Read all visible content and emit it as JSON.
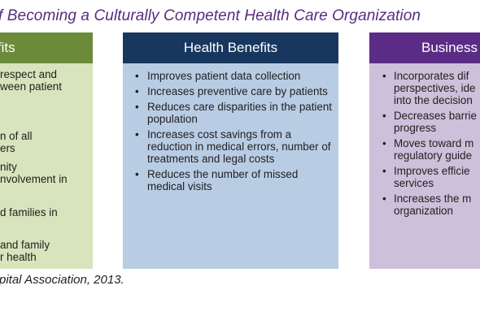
{
  "title": "f Becoming a Culturally Competent Health Care Organization",
  "source": "pital Association, 2013.",
  "bullet": "•",
  "columns": {
    "left": {
      "heading": "nefits",
      "lines": [
        "respect and",
        "ween patient",
        "",
        "n of all",
        "ers",
        "nity",
        "nvolvement in",
        "",
        "d families in",
        "",
        "and family",
        "r health"
      ]
    },
    "middle": {
      "heading": "Health Benefits",
      "items": [
        "Improves patient data collection",
        "Increases preventive care by patients",
        "Reduces care disparities in the patient population",
        "Increases cost savings from a reduction in medical errors, number of treatments and legal costs",
        "Reduces the number of missed medical visits"
      ]
    },
    "right": {
      "heading": "Business",
      "items": [
        [
          "Incorporates dif",
          "perspectives, ide",
          "into the decision"
        ],
        [
          "Decreases barrie",
          "progress"
        ],
        [
          "Moves toward m",
          "regulatory guide"
        ],
        [
          "Improves efficie",
          "services"
        ],
        [
          "Increases the m",
          "organization"
        ]
      ]
    }
  },
  "colors": {
    "title": "#5a2a82",
    "left_head": "#6c8b3a",
    "left_body": "#d8e4bc",
    "middle_head": "#17375e",
    "middle_body": "#b8cce4",
    "right_head": "#5b2c86",
    "right_body": "#ccc0da"
  }
}
